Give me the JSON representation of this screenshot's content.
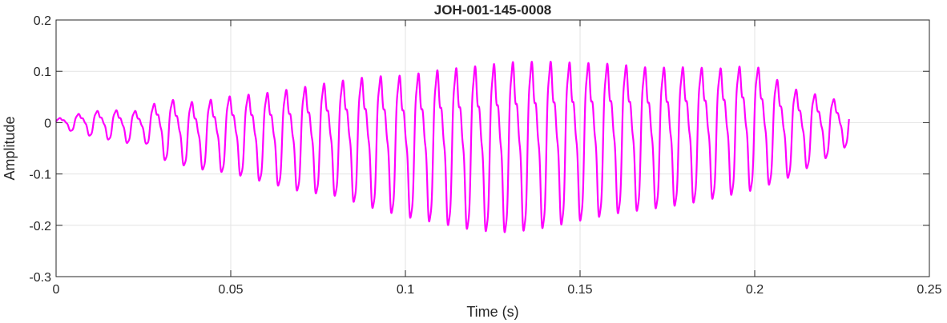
{
  "chart_data": {
    "type": "line",
    "title": "JOH-001-145-0008",
    "xlabel": "Time (s)",
    "ylabel": "Amplitude",
    "xlim": [
      0,
      0.25
    ],
    "ylim": [
      -0.3,
      0.2
    ],
    "xticks": [
      0,
      0.05,
      0.1,
      0.15,
      0.2,
      0.25
    ],
    "xtick_labels": [
      "0",
      "0.05",
      "0.1",
      "0.15",
      "0.2",
      "0.25"
    ],
    "yticks": [
      -0.3,
      -0.2,
      -0.1,
      0,
      0.1,
      0.2
    ],
    "ytick_labels": [
      "-0.3",
      "-0.2",
      "-0.1",
      "0",
      "0.1",
      "0.2"
    ],
    "grid": true,
    "series": [
      {
        "color": "#ff00ff",
        "x_range": [
          0,
          0.227
        ],
        "envelope": {
          "t": [
            0,
            0.01,
            0.02,
            0.025,
            0.03,
            0.04,
            0.05,
            0.06,
            0.07,
            0.08,
            0.09,
            0.1,
            0.11,
            0.12,
            0.13,
            0.14,
            0.15,
            0.16,
            0.17,
            0.18,
            0.19,
            0.2,
            0.21,
            0.22,
            0.227
          ],
          "upper": [
            0.01,
            0.03,
            0.035,
            0.03,
            0.065,
            0.06,
            0.075,
            0.085,
            0.1,
            0.115,
            0.13,
            0.135,
            0.15,
            0.16,
            0.17,
            0.17,
            0.165,
            0.16,
            0.15,
            0.15,
            0.145,
            0.15,
            0.095,
            0.07,
            0.05
          ],
          "lower": [
            -0.01,
            -0.03,
            -0.045,
            -0.04,
            -0.08,
            -0.1,
            -0.11,
            -0.13,
            -0.15,
            -0.16,
            -0.185,
            -0.205,
            -0.22,
            -0.235,
            -0.24,
            -0.23,
            -0.215,
            -0.2,
            -0.19,
            -0.18,
            -0.165,
            -0.15,
            -0.12,
            -0.08,
            -0.05
          ]
        },
        "frequency_hz_approx": 185
      }
    ]
  }
}
